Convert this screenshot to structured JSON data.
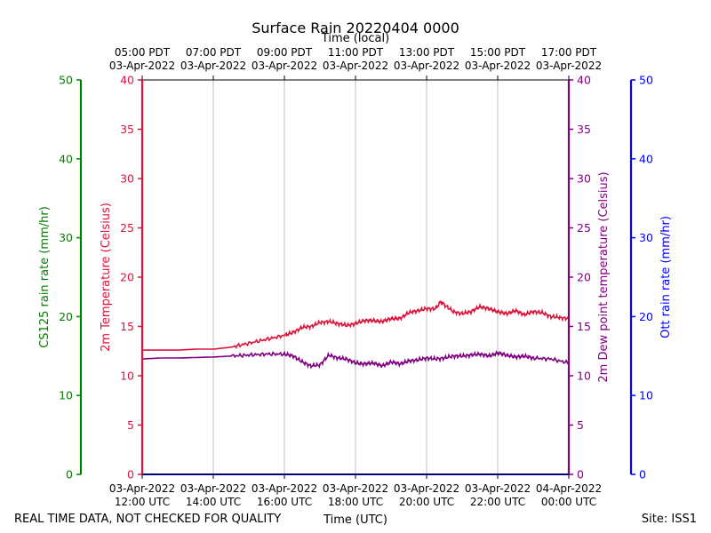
{
  "chart_data": {
    "type": "line",
    "title": "Surface Rain 20220404 0000",
    "top_axis_label": "Time (local)",
    "xlabel": "Time (UTC)",
    "footer_left": "REAL TIME DATA, NOT CHECKED FOR QUALITY",
    "footer_right": "Site: ISS1",
    "x_range_hours": [
      0,
      12
    ],
    "bottom_ticks": [
      {
        "h": 0,
        "l1": "03-Apr-2022",
        "l2": "12:00 UTC"
      },
      {
        "h": 2,
        "l1": "03-Apr-2022",
        "l2": "14:00 UTC"
      },
      {
        "h": 4,
        "l1": "03-Apr-2022",
        "l2": "16:00 UTC"
      },
      {
        "h": 6,
        "l1": "03-Apr-2022",
        "l2": "18:00 UTC"
      },
      {
        "h": 8,
        "l1": "03-Apr-2022",
        "l2": "20:00 UTC"
      },
      {
        "h": 10,
        "l1": "03-Apr-2022",
        "l2": "22:00 UTC"
      },
      {
        "h": 12,
        "l1": "04-Apr-2022",
        "l2": "00:00 UTC"
      }
    ],
    "top_ticks": [
      {
        "h": 0,
        "l1": "05:00 PDT",
        "l2": "03-Apr-2022"
      },
      {
        "h": 2,
        "l1": "07:00 PDT",
        "l2": "03-Apr-2022"
      },
      {
        "h": 4,
        "l1": "09:00 PDT",
        "l2": "03-Apr-2022"
      },
      {
        "h": 6,
        "l1": "11:00 PDT",
        "l2": "03-Apr-2022"
      },
      {
        "h": 8,
        "l1": "13:00 PDT",
        "l2": "03-Apr-2022"
      },
      {
        "h": 10,
        "l1": "15:00 PDT",
        "l2": "03-Apr-2022"
      },
      {
        "h": 12,
        "l1": "17:00 PDT",
        "l2": "03-Apr-2022"
      }
    ],
    "axes": {
      "cs125": {
        "label": "CS125 rain rate (mm/hr)",
        "color": "#008000",
        "ylim": [
          0,
          50
        ],
        "ticks": [
          0,
          10,
          20,
          30,
          40,
          50
        ]
      },
      "temp": {
        "label": "2m Temperature (Celsius)",
        "color": "#dc143c",
        "ylim": [
          0,
          40
        ],
        "ticks": [
          0,
          5,
          10,
          15,
          20,
          25,
          30,
          35,
          40
        ]
      },
      "dew": {
        "label": "2m Dew point temperature (Celsius)",
        "color": "#800080",
        "ylim": [
          0,
          40
        ],
        "ticks": [
          0,
          5,
          10,
          15,
          20,
          25,
          30,
          35,
          40
        ]
      },
      "ott": {
        "label": "Ott rain rate (mm/hr)",
        "color": "#0000ff",
        "ylim": [
          0,
          50
        ],
        "ticks": [
          0,
          10,
          20,
          30,
          40,
          50
        ]
      }
    },
    "series": [
      {
        "name": "2m Temperature",
        "axis": "temp",
        "color": "#dc143c",
        "x": [
          0,
          1,
          1.5,
          2,
          2.5,
          3,
          3.5,
          4,
          4.25,
          4.5,
          4.75,
          5,
          5.25,
          5.5,
          5.75,
          6,
          6.25,
          6.5,
          6.75,
          7,
          7.25,
          7.5,
          7.75,
          8,
          8.25,
          8.4,
          8.5,
          8.75,
          9,
          9.25,
          9.5,
          9.75,
          10,
          10.25,
          10.5,
          10.75,
          11,
          11.25,
          11.5,
          11.75,
          12
        ],
        "values": [
          12.6,
          12.6,
          12.7,
          12.7,
          12.9,
          13.3,
          13.7,
          14.1,
          14.4,
          14.9,
          15.0,
          15.4,
          15.5,
          15.3,
          15.1,
          15.3,
          15.6,
          15.6,
          15.5,
          15.8,
          15.8,
          16.4,
          16.6,
          16.8,
          16.8,
          17.5,
          17.2,
          16.5,
          16.3,
          16.5,
          17.0,
          16.8,
          16.5,
          16.3,
          16.6,
          16.2,
          16.5,
          16.4,
          16.0,
          15.9,
          15.8
        ]
      },
      {
        "name": "2m Dew point temperature",
        "axis": "dew",
        "color": "#800080",
        "x": [
          0,
          0.5,
          1,
          2,
          2.5,
          3,
          3.5,
          4,
          4.25,
          4.5,
          4.75,
          5,
          5.25,
          5.5,
          5.75,
          6,
          6.25,
          6.5,
          6.75,
          7,
          7.25,
          7.5,
          7.75,
          8,
          8.25,
          8.5,
          8.75,
          9,
          9.25,
          9.5,
          9.75,
          10,
          10.25,
          10.5,
          10.75,
          11,
          11.5,
          12
        ],
        "values": [
          11.7,
          11.8,
          11.8,
          11.9,
          12.0,
          12.1,
          12.2,
          12.2,
          12.0,
          11.4,
          11.0,
          11.1,
          12.1,
          11.8,
          11.7,
          11.3,
          11.2,
          11.3,
          11.0,
          11.4,
          11.2,
          11.5,
          11.6,
          11.8,
          11.7,
          11.8,
          12.0,
          12.0,
          12.1,
          12.2,
          12.0,
          12.3,
          12.1,
          11.9,
          12.0,
          11.8,
          11.7,
          11.3
        ]
      },
      {
        "name": "CS125 rain rate",
        "axis": "cs125",
        "color": "#008000",
        "x": [
          0,
          12
        ],
        "values": [
          0,
          0
        ]
      },
      {
        "name": "Ott rain rate",
        "axis": "ott",
        "color": "#0000ff",
        "x": [
          0,
          12
        ],
        "values": [
          0,
          0
        ]
      }
    ]
  }
}
